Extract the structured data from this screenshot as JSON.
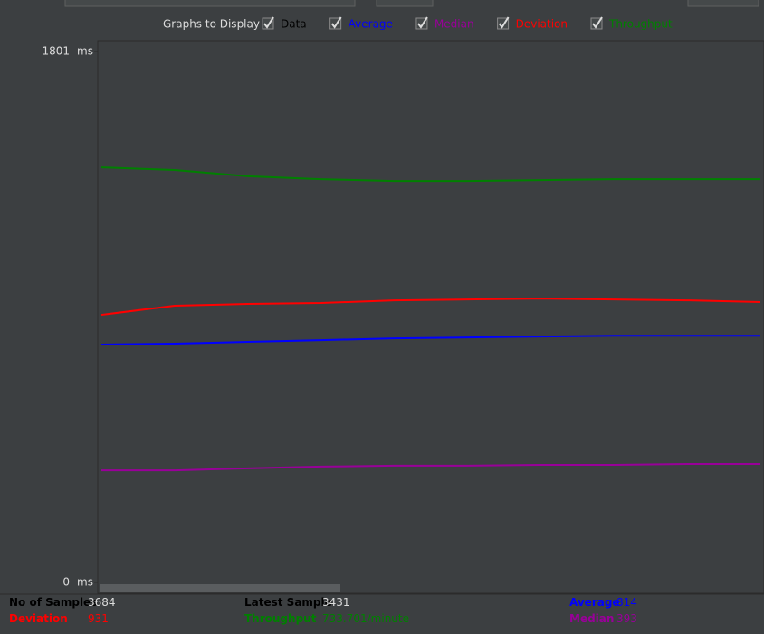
{
  "toolbar": {
    "title": "Graphs to Display",
    "options": [
      {
        "label": "Data",
        "color": "#000000"
      },
      {
        "label": "Average",
        "color": "#0000ff"
      },
      {
        "label": "Median",
        "color": "#990099"
      },
      {
        "label": "Deviation",
        "color": "#ff0000"
      },
      {
        "label": "Throughput",
        "color": "#008000"
      }
    ]
  },
  "chart_data": {
    "type": "line",
    "unit": "ms",
    "ylim": [
      0,
      1801
    ],
    "yticks": [
      0,
      1801
    ],
    "series": [
      {
        "name": "Average",
        "color": "#0000ff",
        "values": [
          807,
          810,
          816,
          822,
          828,
          831,
          834,
          837,
          837,
          837
        ]
      },
      {
        "name": "Median",
        "color": "#990099",
        "values": [
          380,
          380,
          387,
          393,
          396,
          396,
          399,
          399,
          402,
          402
        ]
      },
      {
        "name": "Deviation",
        "color": "#ff0000",
        "values": [
          908,
          939,
          945,
          948,
          957,
          960,
          963,
          960,
          957,
          951
        ]
      },
      {
        "name": "Throughput",
        "color": "#008000",
        "values": [
          1408,
          1399,
          1378,
          1368,
          1362,
          1362,
          1365,
          1368,
          1368,
          1368
        ]
      }
    ]
  },
  "stats": {
    "samples_label": "No of Samples",
    "samples": "3684",
    "latest_label": "Latest Sample",
    "latest": "3431",
    "average_label": "Average",
    "average": "814",
    "deviation_label": "Deviation",
    "deviation": "931",
    "throughput_label": "Throughput",
    "throughput": "733.701/minute",
    "median_label": "Median",
    "median": "393"
  }
}
